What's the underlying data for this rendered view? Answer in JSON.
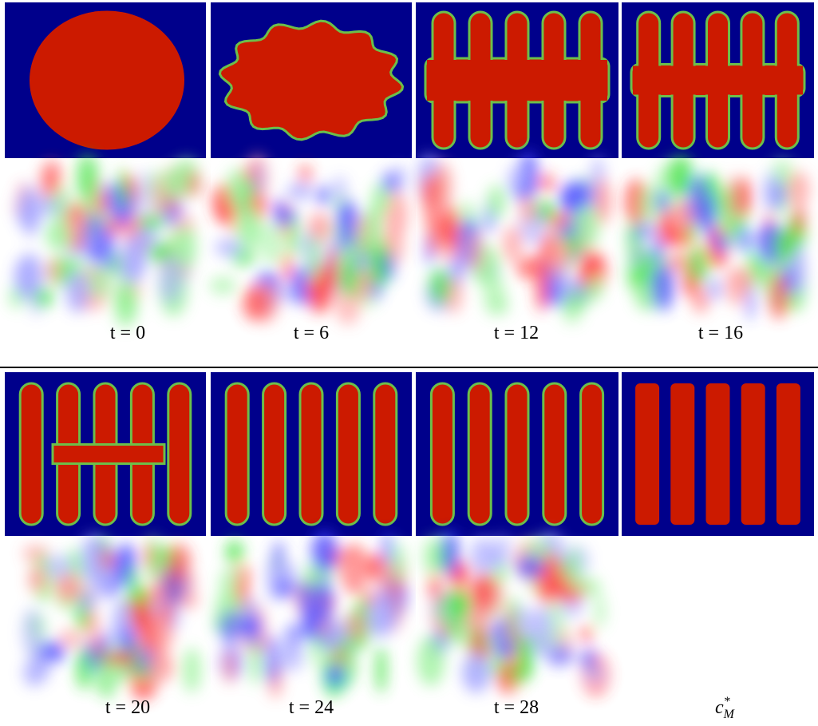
{
  "top": {
    "labels": [
      "t = 0",
      "t = 6",
      "t = 12",
      "t = 16"
    ]
  },
  "bottom": {
    "labels": [
      "t = 20",
      "t = 24",
      "t = 28"
    ],
    "final_label": {
      "base": "c",
      "sup": "*",
      "sub": "M"
    }
  }
}
